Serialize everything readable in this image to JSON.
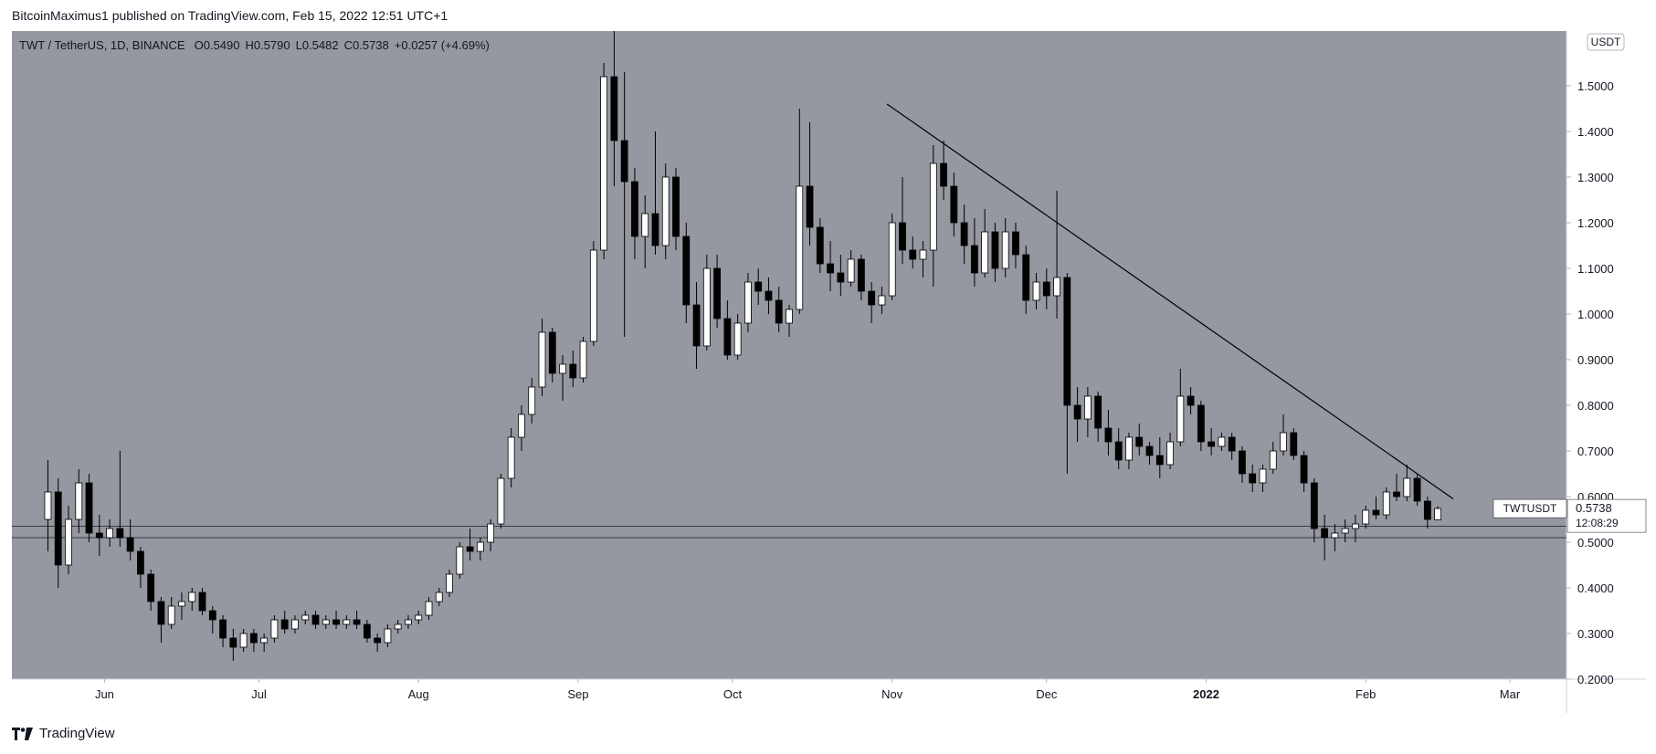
{
  "header": {
    "publisher_line": "BitcoinMaximus1 published on TradingView.com, Feb 15, 2022 12:51 UTC+1"
  },
  "legend": {
    "symbol": "TWT / TetherUS, 1D, BINANCE",
    "o_label": "O",
    "o_value": "0.5490",
    "h_label": "H",
    "h_value": "0.5790",
    "l_label": "L",
    "l_value": "0.5482",
    "c_label": "C",
    "c_value": "0.5738",
    "change": "+0.0257 (+4.69%)"
  },
  "currency_badge": "USDT",
  "price_tag": {
    "symbol": "TWTUSDT",
    "price": "0.5738",
    "countdown": "12:08:29"
  },
  "footer": {
    "brand": "TradingView"
  },
  "colors": {
    "plot_bg": "#9598a1",
    "up": "#ffffff",
    "down": "#000000",
    "wick": "#000000",
    "line": "#000000",
    "axis_bg": "#ffffff",
    "axis_text": "#131722"
  },
  "chart_data": {
    "type": "candlestick",
    "title": "TWT / TetherUS, 1D, BINANCE",
    "xlabel": "",
    "ylabel": "",
    "ylim": [
      0.2,
      1.62
    ],
    "x_ticks": [
      "Jun",
      "Jul",
      "Aug",
      "Sep",
      "Oct",
      "Nov",
      "Dec",
      "2022",
      "Feb",
      "Mar"
    ],
    "x_tick_dates": [
      "2021-06-01",
      "2021-07-01",
      "2021-08-01",
      "2021-09-01",
      "2021-10-01",
      "2021-11-01",
      "2021-12-01",
      "2022-01-01",
      "2022-02-01",
      "2022-03-01"
    ],
    "y_ticks": [
      "0.2000",
      "0.3000",
      "0.4000",
      "0.5000",
      "0.6000",
      "0.7000",
      "0.8000",
      "0.9000",
      "1.0000",
      "1.1000",
      "1.2000",
      "1.3000",
      "1.4000",
      "1.5000"
    ],
    "grid": false,
    "support_zone": [
      0.51,
      0.535
    ],
    "trendline": [
      {
        "date": "2021-10-31",
        "price": 1.46
      },
      {
        "date": "2022-02-18",
        "price": 0.595
      }
    ],
    "last_close": 0.5738,
    "candles": [
      {
        "date": "2021-05-21",
        "o": 0.55,
        "h": 0.68,
        "l": 0.48,
        "c": 0.61
      },
      {
        "date": "2021-05-23",
        "o": 0.61,
        "h": 0.64,
        "l": 0.4,
        "c": 0.45
      },
      {
        "date": "2021-05-25",
        "o": 0.45,
        "h": 0.58,
        "l": 0.43,
        "c": 0.55
      },
      {
        "date": "2021-05-27",
        "o": 0.55,
        "h": 0.66,
        "l": 0.52,
        "c": 0.63
      },
      {
        "date": "2021-05-29",
        "o": 0.63,
        "h": 0.65,
        "l": 0.5,
        "c": 0.52
      },
      {
        "date": "2021-05-31",
        "o": 0.52,
        "h": 0.56,
        "l": 0.47,
        "c": 0.51
      },
      {
        "date": "2021-06-02",
        "o": 0.51,
        "h": 0.55,
        "l": 0.49,
        "c": 0.53
      },
      {
        "date": "2021-06-04",
        "o": 0.53,
        "h": 0.7,
        "l": 0.49,
        "c": 0.51
      },
      {
        "date": "2021-06-06",
        "o": 0.51,
        "h": 0.55,
        "l": 0.46,
        "c": 0.48
      },
      {
        "date": "2021-06-08",
        "o": 0.48,
        "h": 0.49,
        "l": 0.4,
        "c": 0.43
      },
      {
        "date": "2021-06-10",
        "o": 0.43,
        "h": 0.44,
        "l": 0.35,
        "c": 0.37
      },
      {
        "date": "2021-06-12",
        "o": 0.37,
        "h": 0.38,
        "l": 0.28,
        "c": 0.32
      },
      {
        "date": "2021-06-14",
        "o": 0.32,
        "h": 0.38,
        "l": 0.31,
        "c": 0.36
      },
      {
        "date": "2021-06-16",
        "o": 0.36,
        "h": 0.39,
        "l": 0.33,
        "c": 0.37
      },
      {
        "date": "2021-06-18",
        "o": 0.37,
        "h": 0.4,
        "l": 0.35,
        "c": 0.39
      },
      {
        "date": "2021-06-20",
        "o": 0.39,
        "h": 0.4,
        "l": 0.34,
        "c": 0.35
      },
      {
        "date": "2021-06-22",
        "o": 0.35,
        "h": 0.36,
        "l": 0.3,
        "c": 0.33
      },
      {
        "date": "2021-06-24",
        "o": 0.33,
        "h": 0.34,
        "l": 0.27,
        "c": 0.29
      },
      {
        "date": "2021-06-26",
        "o": 0.29,
        "h": 0.31,
        "l": 0.24,
        "c": 0.27
      },
      {
        "date": "2021-06-28",
        "o": 0.27,
        "h": 0.31,
        "l": 0.26,
        "c": 0.3
      },
      {
        "date": "2021-06-30",
        "o": 0.3,
        "h": 0.31,
        "l": 0.26,
        "c": 0.28
      },
      {
        "date": "2021-07-02",
        "o": 0.28,
        "h": 0.3,
        "l": 0.26,
        "c": 0.29
      },
      {
        "date": "2021-07-04",
        "o": 0.29,
        "h": 0.34,
        "l": 0.28,
        "c": 0.33
      },
      {
        "date": "2021-07-06",
        "o": 0.33,
        "h": 0.35,
        "l": 0.3,
        "c": 0.31
      },
      {
        "date": "2021-07-08",
        "o": 0.31,
        "h": 0.34,
        "l": 0.3,
        "c": 0.33
      },
      {
        "date": "2021-07-10",
        "o": 0.33,
        "h": 0.35,
        "l": 0.32,
        "c": 0.34
      },
      {
        "date": "2021-07-12",
        "o": 0.34,
        "h": 0.35,
        "l": 0.31,
        "c": 0.32
      },
      {
        "date": "2021-07-14",
        "o": 0.32,
        "h": 0.34,
        "l": 0.31,
        "c": 0.33
      },
      {
        "date": "2021-07-16",
        "o": 0.33,
        "h": 0.35,
        "l": 0.31,
        "c": 0.32
      },
      {
        "date": "2021-07-18",
        "o": 0.32,
        "h": 0.34,
        "l": 0.31,
        "c": 0.33
      },
      {
        "date": "2021-07-20",
        "o": 0.33,
        "h": 0.35,
        "l": 0.31,
        "c": 0.32
      },
      {
        "date": "2021-07-22",
        "o": 0.32,
        "h": 0.33,
        "l": 0.28,
        "c": 0.29
      },
      {
        "date": "2021-07-24",
        "o": 0.29,
        "h": 0.3,
        "l": 0.26,
        "c": 0.28
      },
      {
        "date": "2021-07-26",
        "o": 0.28,
        "h": 0.32,
        "l": 0.27,
        "c": 0.31
      },
      {
        "date": "2021-07-28",
        "o": 0.31,
        "h": 0.33,
        "l": 0.3,
        "c": 0.32
      },
      {
        "date": "2021-07-30",
        "o": 0.32,
        "h": 0.34,
        "l": 0.31,
        "c": 0.33
      },
      {
        "date": "2021-08-01",
        "o": 0.33,
        "h": 0.35,
        "l": 0.32,
        "c": 0.34
      },
      {
        "date": "2021-08-03",
        "o": 0.34,
        "h": 0.38,
        "l": 0.33,
        "c": 0.37
      },
      {
        "date": "2021-08-05",
        "o": 0.37,
        "h": 0.4,
        "l": 0.36,
        "c": 0.39
      },
      {
        "date": "2021-08-07",
        "o": 0.39,
        "h": 0.44,
        "l": 0.38,
        "c": 0.43
      },
      {
        "date": "2021-08-09",
        "o": 0.43,
        "h": 0.5,
        "l": 0.42,
        "c": 0.49
      },
      {
        "date": "2021-08-11",
        "o": 0.49,
        "h": 0.53,
        "l": 0.46,
        "c": 0.48
      },
      {
        "date": "2021-08-13",
        "o": 0.48,
        "h": 0.51,
        "l": 0.46,
        "c": 0.5
      },
      {
        "date": "2021-08-15",
        "o": 0.5,
        "h": 0.55,
        "l": 0.48,
        "c": 0.54
      },
      {
        "date": "2021-08-17",
        "o": 0.54,
        "h": 0.65,
        "l": 0.53,
        "c": 0.64
      },
      {
        "date": "2021-08-19",
        "o": 0.64,
        "h": 0.75,
        "l": 0.62,
        "c": 0.73
      },
      {
        "date": "2021-08-21",
        "o": 0.73,
        "h": 0.8,
        "l": 0.7,
        "c": 0.78
      },
      {
        "date": "2021-08-23",
        "o": 0.78,
        "h": 0.86,
        "l": 0.76,
        "c": 0.84
      },
      {
        "date": "2021-08-25",
        "o": 0.84,
        "h": 0.99,
        "l": 0.82,
        "c": 0.96
      },
      {
        "date": "2021-08-27",
        "o": 0.96,
        "h": 0.97,
        "l": 0.85,
        "c": 0.87
      },
      {
        "date": "2021-08-29",
        "o": 0.87,
        "h": 0.91,
        "l": 0.81,
        "c": 0.89
      },
      {
        "date": "2021-08-31",
        "o": 0.89,
        "h": 0.92,
        "l": 0.84,
        "c": 0.86
      },
      {
        "date": "2021-09-02",
        "o": 0.86,
        "h": 0.95,
        "l": 0.85,
        "c": 0.94
      },
      {
        "date": "2021-09-04",
        "o": 0.94,
        "h": 1.16,
        "l": 0.93,
        "c": 1.14
      },
      {
        "date": "2021-09-06",
        "o": 1.14,
        "h": 1.55,
        "l": 1.12,
        "c": 1.52
      },
      {
        "date": "2021-09-08",
        "o": 1.52,
        "h": 1.62,
        "l": 1.28,
        "c": 1.38
      },
      {
        "date": "2021-09-10",
        "o": 1.38,
        "h": 1.53,
        "l": 0.95,
        "c": 1.29
      },
      {
        "date": "2021-09-12",
        "o": 1.29,
        "h": 1.32,
        "l": 1.12,
        "c": 1.17
      },
      {
        "date": "2021-09-14",
        "o": 1.17,
        "h": 1.26,
        "l": 1.1,
        "c": 1.22
      },
      {
        "date": "2021-09-16",
        "o": 1.22,
        "h": 1.4,
        "l": 1.13,
        "c": 1.15
      },
      {
        "date": "2021-09-18",
        "o": 1.15,
        "h": 1.33,
        "l": 1.12,
        "c": 1.3
      },
      {
        "date": "2021-09-20",
        "o": 1.3,
        "h": 1.32,
        "l": 1.14,
        "c": 1.17
      },
      {
        "date": "2021-09-22",
        "o": 1.17,
        "h": 1.2,
        "l": 0.98,
        "c": 1.02
      },
      {
        "date": "2021-09-24",
        "o": 1.02,
        "h": 1.07,
        "l": 0.88,
        "c": 0.93
      },
      {
        "date": "2021-09-26",
        "o": 0.93,
        "h": 1.13,
        "l": 0.92,
        "c": 1.1
      },
      {
        "date": "2021-09-28",
        "o": 1.1,
        "h": 1.13,
        "l": 0.97,
        "c": 0.99
      },
      {
        "date": "2021-09-30",
        "o": 0.99,
        "h": 1.03,
        "l": 0.9,
        "c": 0.91
      },
      {
        "date": "2021-10-02",
        "o": 0.91,
        "h": 1.0,
        "l": 0.9,
        "c": 0.98
      },
      {
        "date": "2021-10-04",
        "o": 0.98,
        "h": 1.09,
        "l": 0.96,
        "c": 1.07
      },
      {
        "date": "2021-10-06",
        "o": 1.07,
        "h": 1.1,
        "l": 1.02,
        "c": 1.05
      },
      {
        "date": "2021-10-08",
        "o": 1.05,
        "h": 1.08,
        "l": 1.0,
        "c": 1.03
      },
      {
        "date": "2021-10-10",
        "o": 1.03,
        "h": 1.06,
        "l": 0.96,
        "c": 0.98
      },
      {
        "date": "2021-10-12",
        "o": 0.98,
        "h": 1.02,
        "l": 0.95,
        "c": 1.01
      },
      {
        "date": "2021-10-14",
        "o": 1.01,
        "h": 1.45,
        "l": 1.0,
        "c": 1.28
      },
      {
        "date": "2021-10-16",
        "o": 1.28,
        "h": 1.42,
        "l": 1.15,
        "c": 1.19
      },
      {
        "date": "2021-10-18",
        "o": 1.19,
        "h": 1.21,
        "l": 1.09,
        "c": 1.11
      },
      {
        "date": "2021-10-20",
        "o": 1.11,
        "h": 1.16,
        "l": 1.05,
        "c": 1.09
      },
      {
        "date": "2021-10-22",
        "o": 1.09,
        "h": 1.13,
        "l": 1.04,
        "c": 1.07
      },
      {
        "date": "2021-10-24",
        "o": 1.07,
        "h": 1.14,
        "l": 1.06,
        "c": 1.12
      },
      {
        "date": "2021-10-26",
        "o": 1.12,
        "h": 1.13,
        "l": 1.03,
        "c": 1.05
      },
      {
        "date": "2021-10-28",
        "o": 1.05,
        "h": 1.07,
        "l": 0.98,
        "c": 1.02
      },
      {
        "date": "2021-10-30",
        "o": 1.02,
        "h": 1.06,
        "l": 1.0,
        "c": 1.04
      },
      {
        "date": "2021-11-01",
        "o": 1.04,
        "h": 1.22,
        "l": 1.03,
        "c": 1.2
      },
      {
        "date": "2021-11-03",
        "o": 1.2,
        "h": 1.3,
        "l": 1.11,
        "c": 1.14
      },
      {
        "date": "2021-11-05",
        "o": 1.14,
        "h": 1.17,
        "l": 1.1,
        "c": 1.12
      },
      {
        "date": "2021-11-07",
        "o": 1.12,
        "h": 1.16,
        "l": 1.08,
        "c": 1.14
      },
      {
        "date": "2021-11-09",
        "o": 1.14,
        "h": 1.37,
        "l": 1.06,
        "c": 1.33
      },
      {
        "date": "2021-11-11",
        "o": 1.33,
        "h": 1.38,
        "l": 1.25,
        "c": 1.28
      },
      {
        "date": "2021-11-13",
        "o": 1.28,
        "h": 1.31,
        "l": 1.17,
        "c": 1.2
      },
      {
        "date": "2021-11-15",
        "o": 1.2,
        "h": 1.24,
        "l": 1.11,
        "c": 1.15
      },
      {
        "date": "2021-11-17",
        "o": 1.15,
        "h": 1.21,
        "l": 1.06,
        "c": 1.09
      },
      {
        "date": "2021-11-19",
        "o": 1.09,
        "h": 1.23,
        "l": 1.08,
        "c": 1.18
      },
      {
        "date": "2021-11-21",
        "o": 1.18,
        "h": 1.2,
        "l": 1.07,
        "c": 1.1
      },
      {
        "date": "2021-11-23",
        "o": 1.1,
        "h": 1.21,
        "l": 1.08,
        "c": 1.18
      },
      {
        "date": "2021-11-25",
        "o": 1.18,
        "h": 1.2,
        "l": 1.1,
        "c": 1.13
      },
      {
        "date": "2021-11-27",
        "o": 1.13,
        "h": 1.15,
        "l": 1.0,
        "c": 1.03
      },
      {
        "date": "2021-11-29",
        "o": 1.03,
        "h": 1.09,
        "l": 1.01,
        "c": 1.07
      },
      {
        "date": "2021-12-01",
        "o": 1.07,
        "h": 1.1,
        "l": 1.01,
        "c": 1.04
      },
      {
        "date": "2021-12-03",
        "o": 1.04,
        "h": 1.27,
        "l": 0.99,
        "c": 1.08
      },
      {
        "date": "2021-12-05",
        "o": 1.08,
        "h": 1.09,
        "l": 0.65,
        "c": 0.8
      },
      {
        "date": "2021-12-07",
        "o": 0.8,
        "h": 0.84,
        "l": 0.72,
        "c": 0.77
      },
      {
        "date": "2021-12-09",
        "o": 0.77,
        "h": 0.84,
        "l": 0.73,
        "c": 0.82
      },
      {
        "date": "2021-12-11",
        "o": 0.82,
        "h": 0.83,
        "l": 0.72,
        "c": 0.75
      },
      {
        "date": "2021-12-13",
        "o": 0.75,
        "h": 0.79,
        "l": 0.69,
        "c": 0.72
      },
      {
        "date": "2021-12-15",
        "o": 0.72,
        "h": 0.75,
        "l": 0.66,
        "c": 0.68
      },
      {
        "date": "2021-12-17",
        "o": 0.68,
        "h": 0.74,
        "l": 0.66,
        "c": 0.73
      },
      {
        "date": "2021-12-19",
        "o": 0.73,
        "h": 0.76,
        "l": 0.69,
        "c": 0.71
      },
      {
        "date": "2021-12-21",
        "o": 0.71,
        "h": 0.72,
        "l": 0.67,
        "c": 0.69
      },
      {
        "date": "2021-12-23",
        "o": 0.69,
        "h": 0.73,
        "l": 0.64,
        "c": 0.67
      },
      {
        "date": "2021-12-25",
        "o": 0.67,
        "h": 0.74,
        "l": 0.66,
        "c": 0.72
      },
      {
        "date": "2021-12-27",
        "o": 0.72,
        "h": 0.88,
        "l": 0.71,
        "c": 0.82
      },
      {
        "date": "2021-12-29",
        "o": 0.82,
        "h": 0.84,
        "l": 0.78,
        "c": 0.8
      },
      {
        "date": "2021-12-31",
        "o": 0.8,
        "h": 0.81,
        "l": 0.7,
        "c": 0.72
      },
      {
        "date": "2022-01-02",
        "o": 0.72,
        "h": 0.75,
        "l": 0.69,
        "c": 0.71
      },
      {
        "date": "2022-01-04",
        "o": 0.71,
        "h": 0.74,
        "l": 0.7,
        "c": 0.73
      },
      {
        "date": "2022-01-06",
        "o": 0.73,
        "h": 0.74,
        "l": 0.68,
        "c": 0.7
      },
      {
        "date": "2022-01-08",
        "o": 0.7,
        "h": 0.71,
        "l": 0.63,
        "c": 0.65
      },
      {
        "date": "2022-01-10",
        "o": 0.65,
        "h": 0.67,
        "l": 0.61,
        "c": 0.63
      },
      {
        "date": "2022-01-12",
        "o": 0.63,
        "h": 0.67,
        "l": 0.61,
        "c": 0.66
      },
      {
        "date": "2022-01-14",
        "o": 0.66,
        "h": 0.72,
        "l": 0.65,
        "c": 0.7
      },
      {
        "date": "2022-01-16",
        "o": 0.7,
        "h": 0.78,
        "l": 0.69,
        "c": 0.74
      },
      {
        "date": "2022-01-18",
        "o": 0.74,
        "h": 0.75,
        "l": 0.68,
        "c": 0.69
      },
      {
        "date": "2022-01-20",
        "o": 0.69,
        "h": 0.7,
        "l": 0.61,
        "c": 0.63
      },
      {
        "date": "2022-01-22",
        "o": 0.63,
        "h": 0.64,
        "l": 0.5,
        "c": 0.53
      },
      {
        "date": "2022-01-24",
        "o": 0.53,
        "h": 0.56,
        "l": 0.46,
        "c": 0.51
      },
      {
        "date": "2022-01-26",
        "o": 0.51,
        "h": 0.54,
        "l": 0.48,
        "c": 0.52
      },
      {
        "date": "2022-01-28",
        "o": 0.52,
        "h": 0.55,
        "l": 0.5,
        "c": 0.53
      },
      {
        "date": "2022-01-30",
        "o": 0.53,
        "h": 0.56,
        "l": 0.5,
        "c": 0.54
      },
      {
        "date": "2022-02-01",
        "o": 0.54,
        "h": 0.58,
        "l": 0.53,
        "c": 0.57
      },
      {
        "date": "2022-02-03",
        "o": 0.57,
        "h": 0.6,
        "l": 0.55,
        "c": 0.56
      },
      {
        "date": "2022-02-05",
        "o": 0.56,
        "h": 0.62,
        "l": 0.55,
        "c": 0.61
      },
      {
        "date": "2022-02-07",
        "o": 0.61,
        "h": 0.65,
        "l": 0.59,
        "c": 0.6
      },
      {
        "date": "2022-02-09",
        "o": 0.6,
        "h": 0.67,
        "l": 0.59,
        "c": 0.64
      },
      {
        "date": "2022-02-11",
        "o": 0.64,
        "h": 0.65,
        "l": 0.58,
        "c": 0.59
      },
      {
        "date": "2022-02-13",
        "o": 0.59,
        "h": 0.6,
        "l": 0.53,
        "c": 0.55
      },
      {
        "date": "2022-02-15",
        "o": 0.549,
        "h": 0.579,
        "l": 0.5482,
        "c": 0.5738
      }
    ]
  }
}
